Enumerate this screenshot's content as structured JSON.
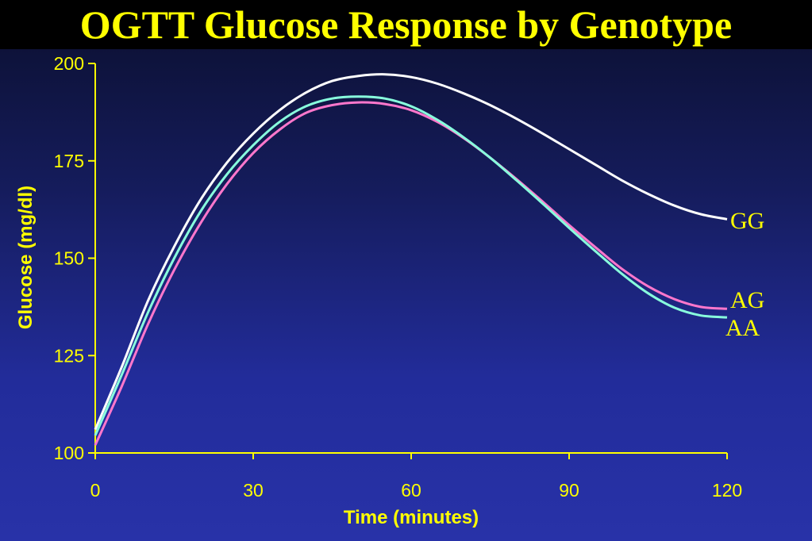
{
  "slide": {
    "title": "OGTT Glucose Response by Genotype"
  },
  "colors": {
    "text": "#ffff00",
    "axis": "#ffff00"
  },
  "chart_data": {
    "type": "line",
    "title": "OGTT Glucose Response by Genotype",
    "xlabel": "Time (minutes)",
    "ylabel": "Glucose (mg/dl)",
    "xlim": [
      0,
      120
    ],
    "ylim": [
      100,
      200
    ],
    "xticks": [
      0,
      30,
      60,
      90,
      120
    ],
    "yticks": [
      100,
      125,
      150,
      175,
      200
    ],
    "grid": false,
    "legend": "direct labels at line ends (right)",
    "series": [
      {
        "name": "GG",
        "color": "#ffffff",
        "x": [
          0,
          5,
          10,
          15,
          20,
          25,
          30,
          35,
          40,
          45,
          50,
          55,
          60,
          65,
          70,
          75,
          80,
          85,
          90,
          95,
          100,
          105,
          110,
          115,
          120
        ],
        "y": [
          106,
          122,
          139,
          153,
          165,
          174.5,
          182,
          188,
          192.5,
          195.5,
          196.8,
          197.2,
          196.5,
          194.8,
          192.3,
          189.3,
          185.8,
          182,
          178,
          174,
          170,
          166.5,
          163.5,
          161.3,
          160
        ]
      },
      {
        "name": "AG",
        "color": "#ff77cc",
        "x": [
          0,
          5,
          10,
          15,
          20,
          25,
          30,
          35,
          40,
          45,
          50,
          55,
          60,
          65,
          70,
          75,
          80,
          85,
          90,
          95,
          100,
          105,
          110,
          115,
          120
        ],
        "y": [
          102,
          117,
          133,
          147,
          159,
          169,
          177,
          183,
          187.3,
          189.3,
          190,
          189.6,
          188,
          185,
          180.8,
          175.8,
          170.3,
          164.5,
          158.5,
          152.8,
          147.3,
          142.8,
          139.5,
          137.5,
          137
        ]
      },
      {
        "name": "AA",
        "color": "#88ffdd",
        "x": [
          0,
          5,
          10,
          15,
          20,
          25,
          30,
          35,
          40,
          45,
          50,
          55,
          60,
          65,
          70,
          75,
          80,
          85,
          90,
          95,
          100,
          105,
          110,
          115,
          120
        ],
        "y": [
          104.5,
          120,
          136,
          150,
          162,
          171.5,
          179,
          185,
          189,
          191,
          191.5,
          191,
          189,
          185.5,
          181,
          175.8,
          170,
          164,
          157.8,
          151.8,
          146,
          141,
          137.3,
          135.3,
          134.8
        ]
      }
    ]
  }
}
